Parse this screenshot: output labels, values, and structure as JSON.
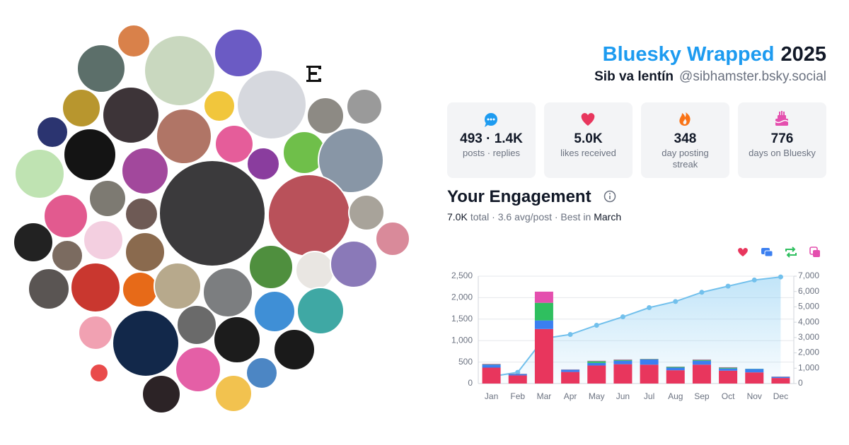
{
  "header": {
    "title": "Bluesky Wrapped",
    "year": "2025",
    "display_name": "Sib va lentín",
    "handle": "@sibhamster.bsky.social"
  },
  "stats": [
    {
      "value": "493 · 1.4K",
      "label_lines": [
        "posts · replies"
      ]
    },
    {
      "value": "5.0K",
      "label_lines": [
        "likes received"
      ]
    },
    {
      "value": "348",
      "label_lines": [
        "day posting",
        "streak"
      ]
    },
    {
      "value": "776",
      "label_lines": [
        "days on Bluesky"
      ]
    }
  ],
  "engagement": {
    "heading": "Your Engagement",
    "summary_parts": [
      "7.0K",
      "total · 3.6 avg/post · Best in",
      "March"
    ]
  },
  "chart_data": {
    "type": "bar",
    "stacked": true,
    "grid": true,
    "categories": [
      "Jan",
      "Feb",
      "Mar",
      "Apr",
      "May",
      "Jun",
      "Jul",
      "Aug",
      "Sep",
      "Oct",
      "Nov",
      "Dec"
    ],
    "ylim": [
      0,
      2500
    ],
    "yticks": [
      0,
      500,
      {
        "value": 1000,
        "label": "1,000"
      },
      {
        "value": 1500,
        "label": "1,500"
      },
      {
        "value": 2000,
        "label": "2,000"
      },
      {
        "value": 2500,
        "label": "2,500"
      }
    ],
    "y2lim": [
      0,
      7000
    ],
    "y2ticks": [
      0,
      {
        "value": 1000,
        "label": "1,000"
      },
      {
        "value": 2000,
        "label": "2,000"
      },
      {
        "value": 3000,
        "label": "3,000"
      },
      {
        "value": 4000,
        "label": "4,000"
      },
      {
        "value": 5000,
        "label": "5,000"
      },
      {
        "value": 6000,
        "label": "6,000"
      },
      {
        "value": 7000,
        "label": "7,000"
      }
    ],
    "legend": "top-right",
    "series": [
      {
        "color": "#e8365d",
        "values": [
          370,
          190,
          1270,
          270,
          420,
          450,
          440,
          310,
          440,
          300,
          260,
          130
        ]
      },
      {
        "color": "#3b7ff0",
        "values": [
          70,
          30,
          200,
          50,
          60,
          80,
          120,
          60,
          90,
          50,
          80,
          25
        ]
      },
      {
        "color": "#2fbf5f",
        "values": [
          10,
          5,
          410,
          5,
          40,
          20,
          10,
          20,
          20,
          20,
          5,
          5
        ]
      },
      {
        "color": "#e44fae",
        "values": [
          10,
          5,
          260,
          5,
          10,
          10,
          5,
          5,
          10,
          10,
          0,
          5
        ]
      },
      {
        "type": "line",
        "axis": "y2",
        "color": "#72c0ec",
        "values": [
          460,
          730,
          2940,
          3200,
          3800,
          4350,
          4950,
          5350,
          5950,
          6350,
          6750,
          6950
        ]
      }
    ]
  }
}
